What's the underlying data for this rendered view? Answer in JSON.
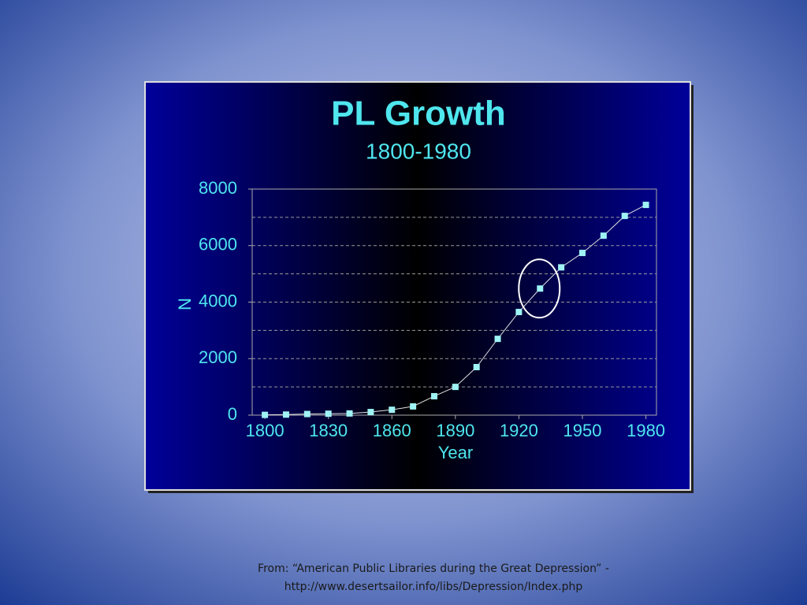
{
  "chart_data": {
    "type": "line",
    "title": "PL Growth",
    "subtitle": "1800-1980",
    "x_label": "Year",
    "y_label": "N",
    "x": [
      1800,
      1810,
      1820,
      1830,
      1840,
      1850,
      1860,
      1870,
      1880,
      1890,
      1900,
      1910,
      1920,
      1930,
      1940,
      1950,
      1960,
      1970,
      1980
    ],
    "series": [
      {
        "name": "N",
        "color": "#9ff3f5",
        "values": [
          10,
          20,
          40,
          50,
          60,
          110,
          190,
          310,
          670,
          1000,
          1700,
          2700,
          3650,
          4480,
          5230,
          5740,
          6350,
          7050,
          7440
        ]
      }
    ],
    "line_color": "#e0e0e0",
    "xlim": [
      1794,
      1985
    ],
    "xticks": [
      1800,
      1830,
      1860,
      1890,
      1920,
      1950,
      1980
    ],
    "ylim": [
      0,
      8000
    ],
    "yticks": [
      0,
      2000,
      4000,
      6000,
      8000
    ],
    "grid_lines": [
      1000,
      2000,
      3000,
      4000,
      5000,
      6000,
      7000
    ]
  },
  "footer": {
    "lines": [
      "From: “American Public Libraries during the Great Depression” -",
      "http://www.desertsailor.info/libs/Depression/Index.php"
    ]
  }
}
